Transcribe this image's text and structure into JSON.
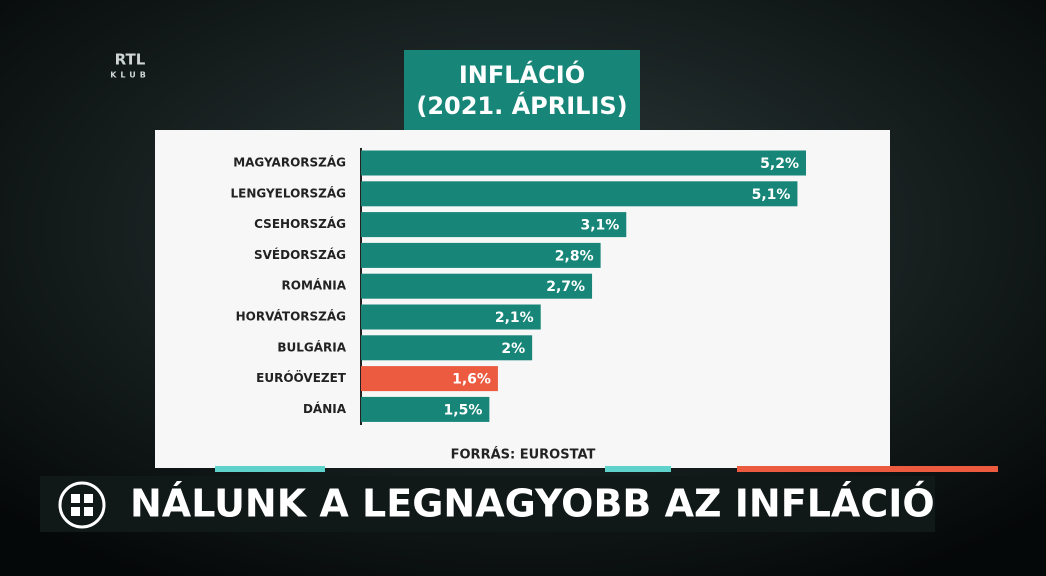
{
  "logo": {
    "top": "RTL",
    "bottom": "KLUB"
  },
  "chart_data": {
    "type": "hbar",
    "title": "INFLÁCIÓ",
    "subtitle": "(2021. ÁPRILIS)",
    "categories": [
      "MAGYARORSZÁG",
      "LENGYELORSZÁG",
      "CSEHORSZÁG",
      "SVÉDORSZÁG",
      "ROMÁNIA",
      "HORVÁTORSZÁG",
      "BULGÁRIA",
      "EURÓÖVEZET",
      "DÁNIA"
    ],
    "values": [
      5.2,
      5.1,
      3.1,
      2.8,
      2.7,
      2.1,
      2,
      1.6,
      1.5
    ],
    "value_labels": [
      "5,2%",
      "5,1%",
      "3,1%",
      "2,8%",
      "2,7%",
      "2,1%",
      "2%",
      "1,6%",
      "1,5%"
    ],
    "colors": [
      "#178577",
      "#178577",
      "#178577",
      "#178577",
      "#178577",
      "#178577",
      "#178577",
      "#ec5a40",
      "#178577"
    ],
    "source": "FORRÁS: EUROSTAT"
  },
  "headline": "NÁLUNK A LEGNAGYOBB AZ INFLÁCIÓ"
}
